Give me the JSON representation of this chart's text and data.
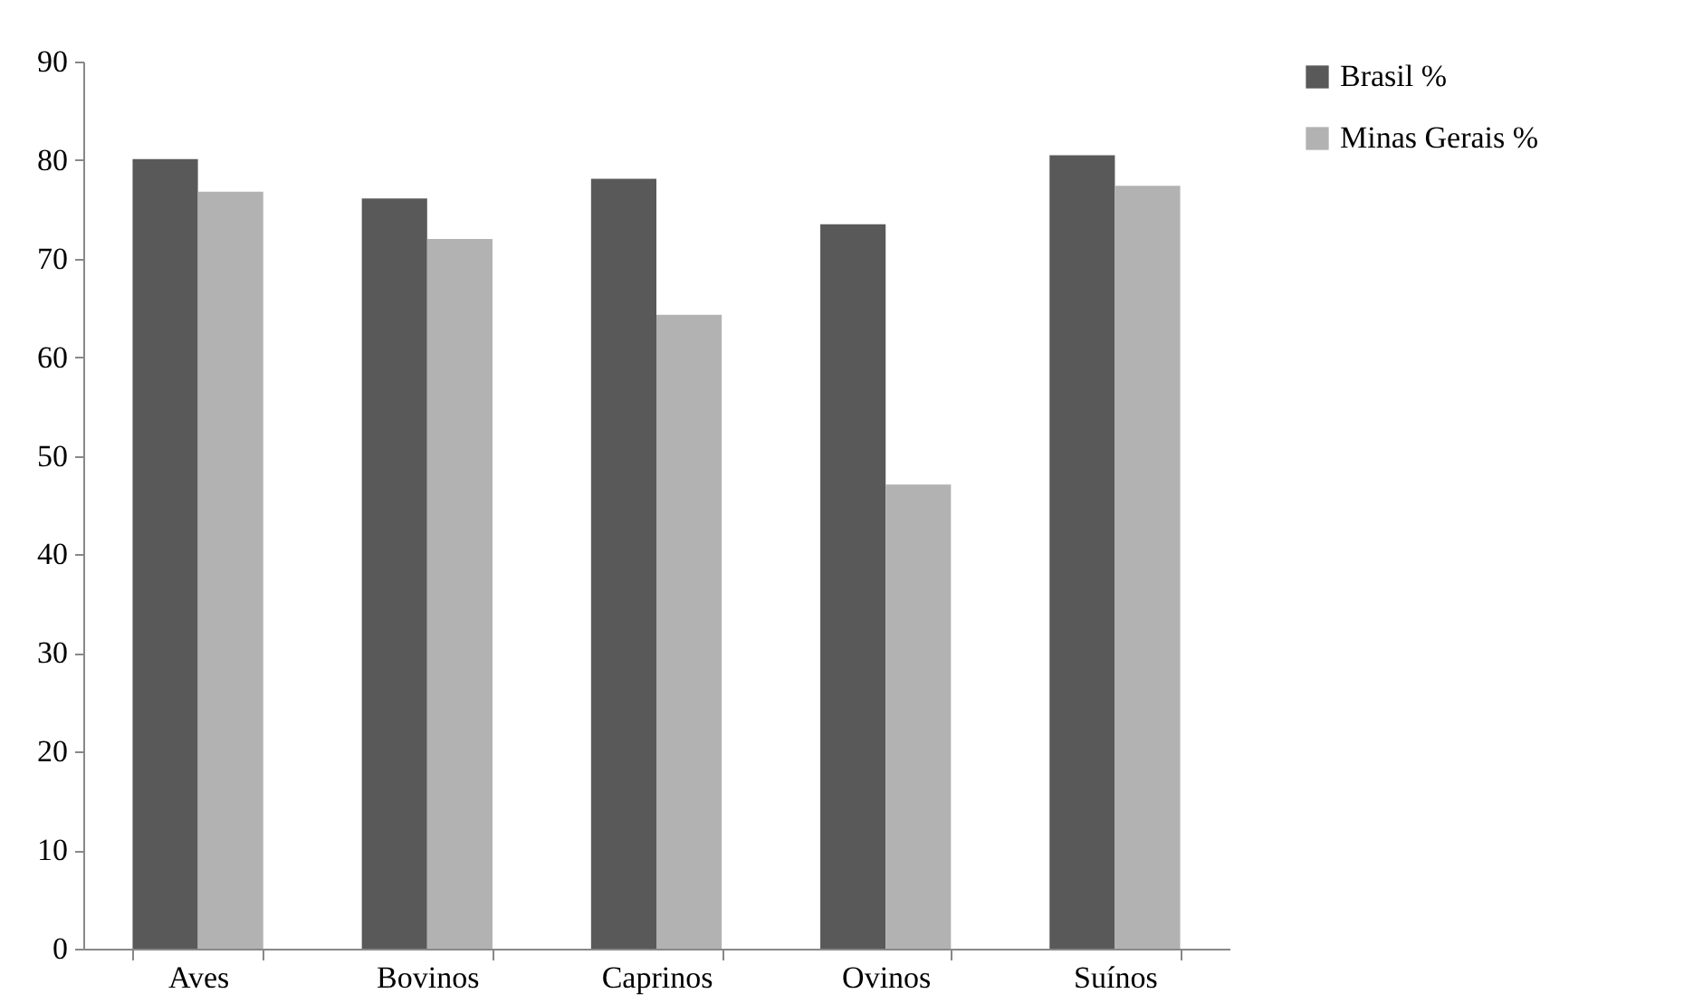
{
  "chart_data": {
    "type": "bar",
    "categories": [
      "Aves",
      "Bovinos",
      "Caprinos",
      "Ovinos",
      "Suínos"
    ],
    "series": [
      {
        "name": "Brasil %",
        "color": "#595959",
        "values": [
          80.1,
          76.1,
          78.1,
          73.5,
          80.5
        ]
      },
      {
        "name": "Minas Gerais %",
        "color": "#b2b2b2",
        "values": [
          76.8,
          72.0,
          64.3,
          47.1,
          77.4
        ]
      }
    ],
    "ylim": [
      0,
      90
    ],
    "yticks": [
      0,
      10,
      20,
      30,
      40,
      50,
      60,
      70,
      80,
      90
    ],
    "grid": false,
    "legend": "right"
  }
}
